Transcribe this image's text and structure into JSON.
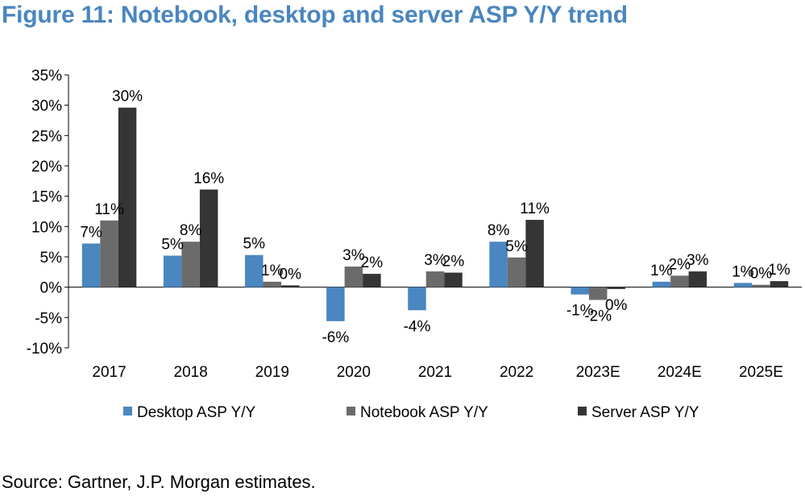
{
  "figure": {
    "title": "Figure 11: Notebook, desktop and server ASP Y/Y trend",
    "source": "Source: Gartner, J.P. Morgan estimates."
  },
  "colors": {
    "desktop": "#4a86c0",
    "notebook": "#6b6b6b",
    "server": "#353535"
  },
  "chart_data": {
    "type": "bar",
    "categories": [
      "2017",
      "2018",
      "2019",
      "2020",
      "2021",
      "2022",
      "2023E",
      "2024E",
      "2025E"
    ],
    "series": [
      {
        "name": "Desktop ASP Y/Y",
        "values": [
          7.2,
          5.2,
          5.3,
          -5.6,
          -3.8,
          7.5,
          -1.2,
          0.9,
          0.7
        ],
        "labels": [
          "7%",
          "5%",
          "5%",
          "-6%",
          "-4%",
          "8%",
          "-1%",
          "1%",
          "1%"
        ]
      },
      {
        "name": "Notebook ASP Y/Y",
        "values": [
          11.0,
          7.5,
          0.9,
          3.4,
          2.6,
          4.9,
          -2.1,
          1.9,
          0.4
        ],
        "labels": [
          "11%",
          "8%",
          "1%",
          "3%",
          "3%",
          "5%",
          "-2%",
          "2%",
          "0%"
        ]
      },
      {
        "name": "Server ASP Y/Y",
        "values": [
          29.6,
          16.1,
          0.3,
          2.2,
          2.4,
          11.1,
          -0.3,
          2.6,
          1.0
        ],
        "labels": [
          "30%",
          "16%",
          "0%",
          "2%",
          "2%",
          "11%",
          "0%",
          "3%",
          "1%"
        ]
      }
    ],
    "yticks": [
      "35%",
      "30%",
      "25%",
      "20%",
      "15%",
      "10%",
      "5%",
      "0%",
      "-5%",
      "-10%"
    ],
    "ylim": [
      -10,
      35
    ],
    "xlabel": "",
    "ylabel": "",
    "grid": false,
    "legend": "bottom"
  }
}
